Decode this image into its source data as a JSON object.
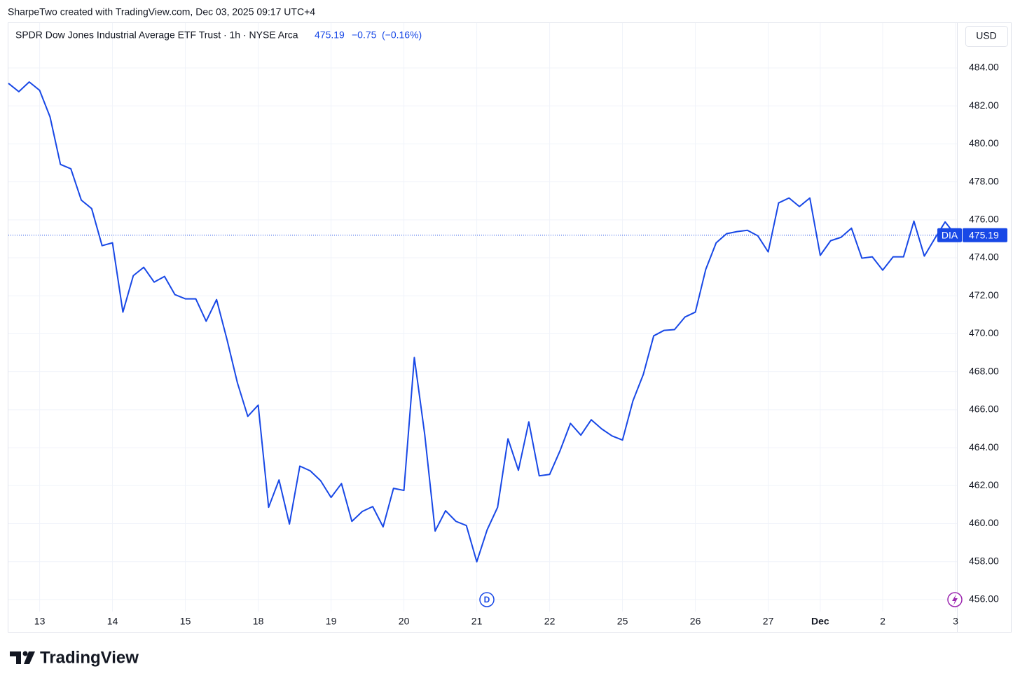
{
  "header": {
    "credit": "SharpeTwo created with TradingView.com, Dec 03, 2025 09:17 UTC+4",
    "brand": "TradingView"
  },
  "chart_data": {
    "type": "line",
    "title": "SPDR Dow Jones Industrial Average ETF Trust · 1h · NYSE Arca",
    "change": "−0.75",
    "change_pct": "(−0.16%)",
    "currency": "USD",
    "last_label": "DIA",
    "last_price": 475.19,
    "events": [
      {
        "label": "D"
      }
    ],
    "categories": [
      null,
      null,
      null,
      "13",
      null,
      null,
      null,
      null,
      null,
      null,
      "14",
      null,
      null,
      null,
      null,
      null,
      null,
      "15",
      null,
      null,
      null,
      null,
      null,
      null,
      "18",
      null,
      null,
      null,
      null,
      null,
      null,
      "19",
      null,
      null,
      null,
      null,
      null,
      null,
      "20",
      null,
      null,
      null,
      null,
      null,
      null,
      "21",
      null,
      null,
      null,
      null,
      null,
      null,
      "22",
      null,
      null,
      null,
      null,
      null,
      null,
      "25",
      null,
      null,
      null,
      null,
      null,
      null,
      "26",
      null,
      null,
      null,
      null,
      null,
      null,
      "27",
      null,
      null,
      null,
      null,
      "Dec",
      null,
      null,
      null,
      null,
      null,
      "2",
      null,
      null,
      null,
      null,
      null,
      null,
      "3"
    ],
    "series": [
      {
        "name": "DIA",
        "color": "#1848e6",
        "values": [
          483.19,
          482.75,
          483.26,
          482.82,
          481.42,
          478.92,
          478.69,
          477.04,
          476.59,
          474.64,
          474.79,
          471.14,
          473.06,
          473.5,
          472.72,
          473.02,
          472.06,
          471.84,
          471.84,
          470.66,
          471.8,
          469.7,
          467.42,
          465.65,
          466.24,
          460.86,
          462.3,
          459.98,
          463.03,
          462.78,
          462.26,
          461.38,
          462.11,
          460.12,
          460.64,
          460.9,
          459.83,
          461.86,
          461.75,
          468.75,
          464.69,
          459.61,
          460.68,
          460.12,
          459.9,
          457.99,
          459.68,
          460.86,
          464.47,
          462.81,
          465.36,
          462.52,
          462.59,
          463.84,
          465.28,
          464.66,
          465.47,
          464.99,
          464.62,
          464.4,
          466.46,
          467.86,
          469.89,
          470.18,
          470.22,
          470.88,
          471.14,
          473.39,
          474.79,
          475.27,
          475.38,
          475.45,
          475.16,
          474.31,
          476.89,
          477.15,
          476.7,
          477.15,
          474.13,
          474.9,
          475.08,
          475.56,
          473.98,
          474.05,
          473.35,
          474.05,
          474.05,
          475.93,
          474.09,
          475.01,
          475.89,
          475.19
        ]
      }
    ],
    "ylim": [
      455.37,
      486.36
    ],
    "yticks": [
      {
        "value": 456,
        "label": "456.00"
      },
      {
        "value": 458,
        "label": "458.00"
      },
      {
        "value": 460,
        "label": "460.00"
      },
      {
        "value": 462,
        "label": "462.00"
      },
      {
        "value": 464,
        "label": "464.00"
      },
      {
        "value": 466,
        "label": "466.00"
      },
      {
        "value": 468,
        "label": "468.00"
      },
      {
        "value": 470,
        "label": "470.00"
      },
      {
        "value": 472,
        "label": "472.00"
      },
      {
        "value": 474,
        "label": "474.00"
      },
      {
        "value": 476,
        "label": "476.00"
      },
      {
        "value": 478,
        "label": "478.00"
      },
      {
        "value": 480,
        "label": "480.00"
      },
      {
        "value": 482,
        "label": "482.00"
      },
      {
        "value": 484,
        "label": "484.00"
      }
    ],
    "grid": true
  }
}
